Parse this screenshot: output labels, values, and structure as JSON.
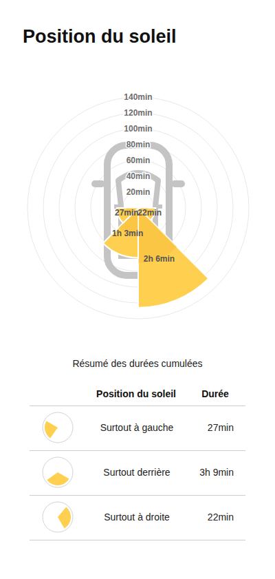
{
  "chart_data": {
    "type": "polar_bar",
    "title": "Position du soleil",
    "categories": [
      null,
      null,
      null,
      null,
      null,
      null,
      null,
      null
    ],
    "values": [
      null,
      null,
      22,
      126,
      63,
      27,
      null,
      null
    ],
    "value_labels": [
      null,
      null,
      "22min",
      "2h 6min",
      "1h 3min",
      "27min",
      null,
      null
    ],
    "color": "#ffcf4f",
    "ylim": [
      0,
      140
    ],
    "yticks": [
      {
        "value": 20,
        "label": "20min"
      },
      {
        "value": 40,
        "label": "40min"
      },
      {
        "value": 60,
        "label": "60min"
      },
      {
        "value": 80,
        "label": "80min"
      },
      {
        "value": 100,
        "label": "100min"
      },
      {
        "value": 120,
        "label": "120min"
      },
      {
        "value": 140,
        "label": "140min"
      }
    ],
    "grid": true,
    "data_labels": true
  },
  "table": {
    "title": "Résumé des durées cumulées",
    "headers": [
      "Position du soleil",
      "Durée"
    ],
    "rows": [
      [
        "Surtout à gauche",
        "27min"
      ],
      [
        "Surtout derrière",
        "3h 9min"
      ],
      [
        "Surtout à droite",
        "22min"
      ]
    ]
  }
}
